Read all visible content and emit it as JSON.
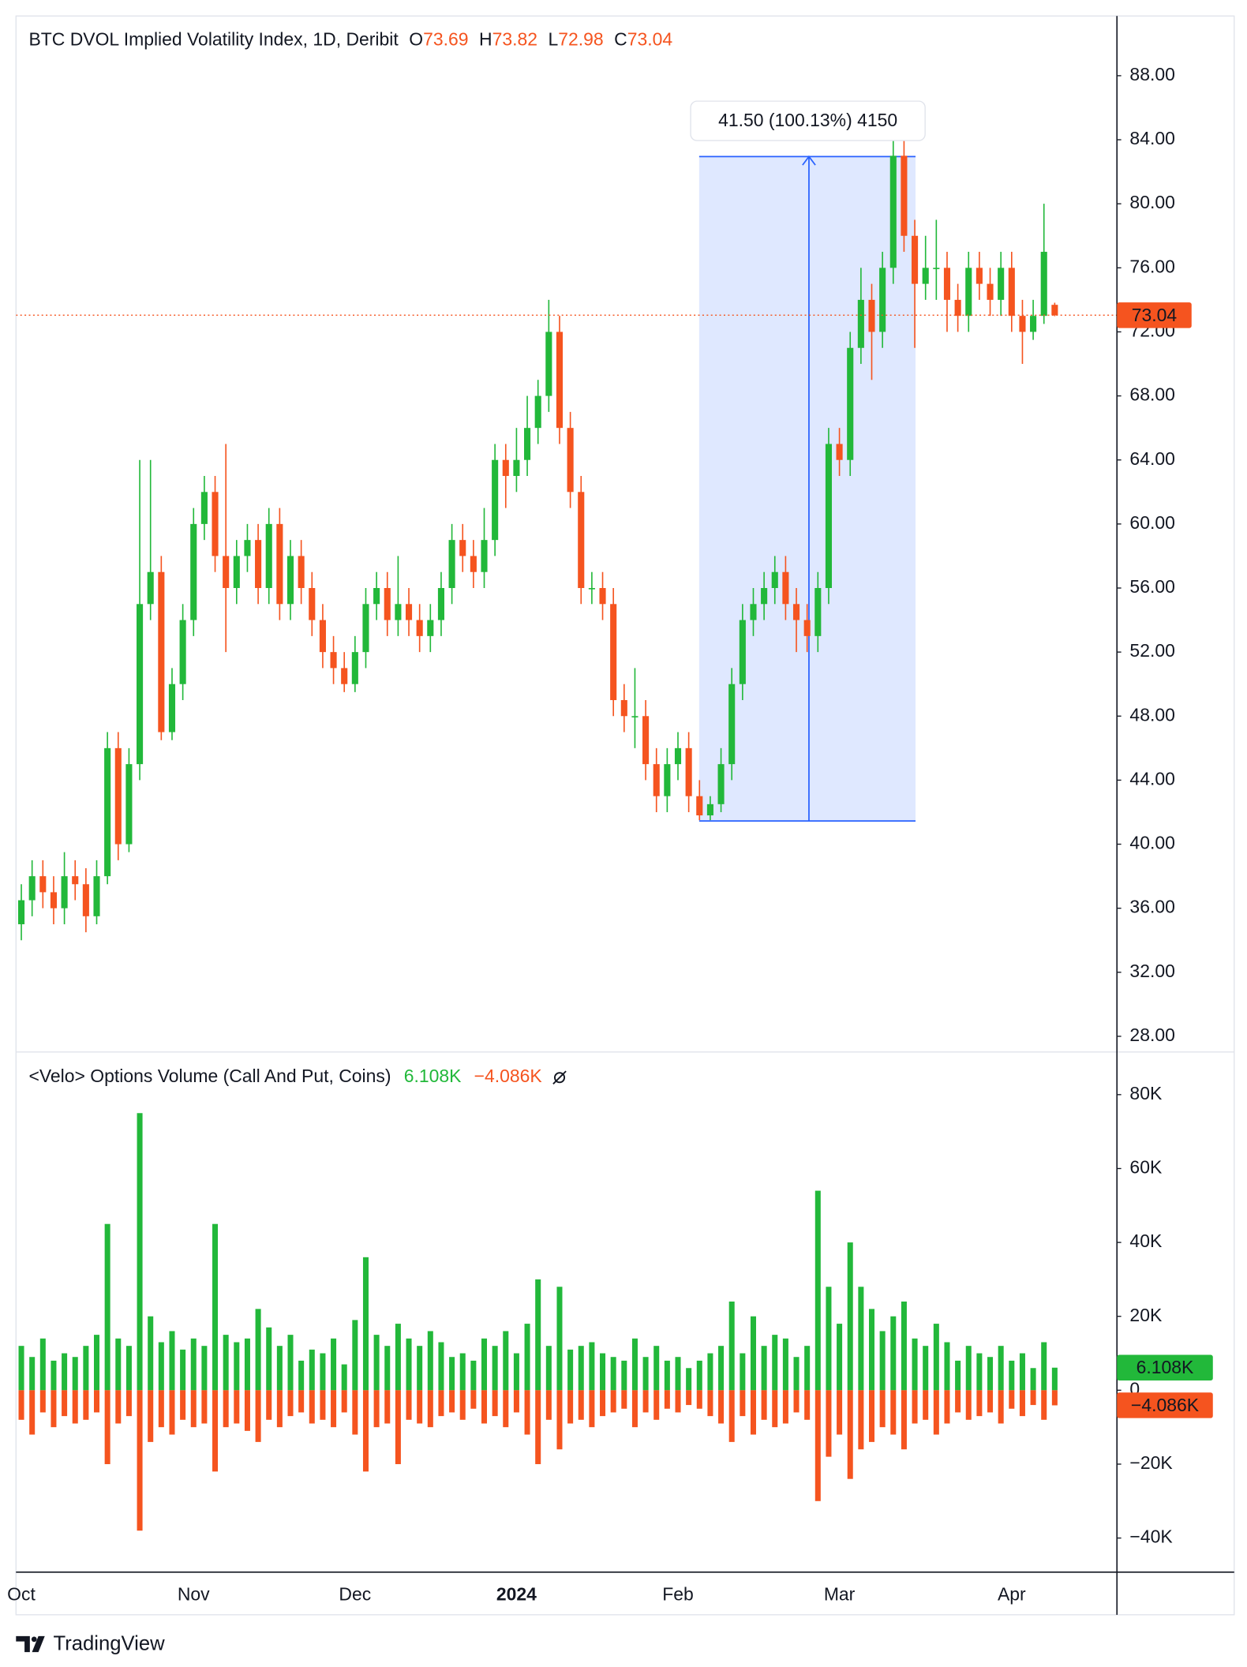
{
  "chart_data": [
    {
      "type": "candlestick",
      "title": "BTC DVOL Implied Volatility Index, 1D, Deribit",
      "ohlc_letters": [
        "O",
        "H",
        "L",
        "C"
      ],
      "categories": [
        "Oct",
        null,
        null,
        null,
        null,
        null,
        null,
        null,
        null,
        null,
        null,
        null,
        null,
        null,
        null,
        null,
        "Nov",
        null,
        null,
        null,
        null,
        null,
        null,
        null,
        null,
        null,
        null,
        null,
        null,
        null,
        null,
        "Dec",
        null,
        null,
        null,
        null,
        null,
        null,
        null,
        null,
        null,
        null,
        null,
        null,
        null,
        null,
        "2024",
        null,
        null,
        null,
        null,
        null,
        null,
        null,
        null,
        null,
        null,
        null,
        null,
        null,
        null,
        "Feb",
        null,
        null,
        null,
        null,
        null,
        null,
        null,
        null,
        null,
        null,
        null,
        null,
        null,
        null,
        "Mar",
        null,
        null,
        null,
        null,
        null,
        null,
        null,
        null,
        null,
        null,
        null,
        null,
        null,
        null,
        null,
        "Apr",
        null,
        null,
        null,
        null
      ],
      "open": [
        35,
        36.5,
        38,
        37,
        36,
        38,
        37.5,
        35.5,
        38,
        46,
        40,
        45,
        55,
        57,
        47,
        50,
        54,
        60,
        62,
        58,
        56,
        58,
        59,
        56,
        60,
        55,
        58,
        56,
        54,
        52,
        51,
        50,
        52,
        55,
        56,
        54,
        55,
        54,
        53,
        54,
        56,
        59,
        58,
        57,
        59,
        64,
        63,
        64,
        66,
        68,
        72,
        66,
        62,
        56,
        56,
        55,
        49,
        48,
        48,
        45,
        43,
        45,
        46,
        43,
        41.8,
        42.5,
        45,
        50,
        54,
        55,
        56,
        57,
        55,
        54,
        53,
        56,
        65,
        64,
        71,
        74,
        72,
        76,
        83,
        78,
        75,
        76,
        76,
        74,
        73,
        76,
        75,
        74,
        76,
        73,
        72,
        73,
        73.69
      ],
      "high": [
        37.5,
        39,
        39,
        38,
        39.5,
        39,
        38.5,
        39,
        47,
        47,
        46,
        64,
        64,
        58,
        51,
        55,
        61,
        63,
        63,
        65,
        59,
        60,
        60,
        61,
        61,
        59,
        59,
        57,
        55,
        53,
        52,
        53,
        56,
        57,
        57,
        58,
        56,
        55,
        55,
        57,
        60,
        60,
        59,
        61,
        65,
        65,
        66,
        68,
        69,
        74,
        73,
        67,
        63,
        57,
        57,
        56,
        50,
        51,
        49,
        46,
        46,
        47,
        47,
        44,
        43,
        46,
        51,
        55,
        56,
        57,
        58,
        58,
        56,
        55,
        57,
        66,
        66,
        72,
        76,
        75,
        77,
        85,
        84,
        79,
        78,
        79,
        77,
        75,
        77,
        77,
        76,
        77,
        77,
        74,
        74,
        80,
        73.82
      ],
      "low": [
        34,
        35.5,
        36,
        35,
        35,
        36.5,
        34.5,
        35,
        37.5,
        39,
        39.5,
        44,
        54,
        46.5,
        46.5,
        49,
        53,
        59,
        57,
        52,
        55,
        57,
        55,
        55,
        54,
        54,
        55,
        53,
        51,
        50,
        49.5,
        49.5,
        51,
        54,
        53,
        53,
        53,
        52,
        52,
        53,
        55,
        57,
        56,
        56,
        58,
        61,
        62,
        63,
        65,
        67,
        65,
        61,
        55,
        55,
        54,
        48,
        47,
        46,
        44,
        42,
        42,
        44,
        42,
        41.5,
        41.5,
        42,
        44,
        49,
        53,
        54,
        55,
        54,
        52,
        52,
        52,
        55,
        63,
        63,
        70,
        69,
        71,
        75,
        77,
        71,
        74,
        74,
        72,
        72,
        72,
        74,
        73,
        73,
        72,
        70,
        71.5,
        72.5,
        72.98
      ],
      "close": [
        36.5,
        38,
        37,
        36,
        38,
        37.5,
        35.5,
        38,
        46,
        40,
        45,
        55,
        57,
        47,
        50,
        54,
        60,
        62,
        58,
        56,
        58,
        59,
        56,
        60,
        55,
        58,
        56,
        54,
        52,
        51,
        50,
        52,
        55,
        56,
        54,
        55,
        54,
        53,
        54,
        56,
        59,
        58,
        57,
        59,
        64,
        63,
        64,
        66,
        68,
        72,
        66,
        62,
        56,
        56,
        55,
        49,
        48,
        48,
        45,
        43,
        45,
        46,
        43,
        41.8,
        42.5,
        45,
        50,
        54,
        55,
        56,
        57,
        55,
        54,
        53,
        56,
        65,
        64,
        71,
        74,
        72,
        76,
        83,
        78,
        75,
        76,
        76,
        74,
        73,
        76,
        75,
        74,
        76,
        73,
        72,
        73,
        77,
        73.04
      ],
      "up_color": "#22b83a",
      "down_color": "#f5541f",
      "ylim": [
        27.02,
        91.73
      ],
      "yticks": [
        {
          "value": 28,
          "label": "28.00"
        },
        {
          "value": 32,
          "label": "32.00"
        },
        {
          "value": 36,
          "label": "36.00"
        },
        {
          "value": 40,
          "label": "40.00"
        },
        {
          "value": 44,
          "label": "44.00"
        },
        {
          "value": 48,
          "label": "48.00"
        },
        {
          "value": 52,
          "label": "52.00"
        },
        {
          "value": 56,
          "label": "56.00"
        },
        {
          "value": 60,
          "label": "60.00"
        },
        {
          "value": 64,
          "label": "64.00"
        },
        {
          "value": 68,
          "label": "68.00"
        },
        {
          "value": 72,
          "label": "72.00"
        },
        {
          "value": 76,
          "label": "76.00"
        },
        {
          "value": 80,
          "label": "80.00"
        },
        {
          "value": 84,
          "label": "84.00"
        },
        {
          "value": 88,
          "label": "88.00"
        }
      ],
      "last_price_line": true,
      "measure": {
        "label": "41.50 (100.13%) 4150",
        "from": 41.45,
        "to": 82.95,
        "color": "#2962ff"
      }
    },
    {
      "type": "bar",
      "title": "<Velo> Options Volume (Call And Put, Coins)",
      "series": [
        {
          "color": "#22b83a",
          "values": [
            12000,
            9000,
            14000,
            8000,
            10000,
            9000,
            12000,
            15000,
            45000,
            14000,
            12000,
            75000,
            20000,
            13000,
            16000,
            11000,
            14000,
            12000,
            45000,
            15000,
            13000,
            14000,
            22000,
            17000,
            12000,
            15000,
            8000,
            11000,
            10000,
            14000,
            7000,
            19000,
            36000,
            15000,
            12000,
            18000,
            14000,
            12000,
            16000,
            13000,
            9000,
            10000,
            8000,
            14000,
            12000,
            16000,
            10000,
            18000,
            30000,
            12000,
            28000,
            11000,
            12000,
            13000,
            10000,
            9000,
            8000,
            14000,
            9000,
            12000,
            8000,
            9000,
            6000,
            8000,
            10000,
            12000,
            24000,
            10000,
            20000,
            12000,
            15000,
            14000,
            9000,
            12000,
            54000,
            28000,
            18000,
            40000,
            28000,
            22000,
            16000,
            20000,
            24000,
            14000,
            12000,
            18000,
            13000,
            8000,
            12000,
            10000,
            9000,
            12000,
            8000,
            10000,
            6000,
            13000,
            6108
          ],
          "value_labels": [
            null,
            null,
            null,
            null,
            null,
            null,
            null,
            null,
            null,
            null,
            null,
            null,
            null,
            null,
            null,
            null,
            null,
            null,
            null,
            null,
            null,
            null,
            null,
            null,
            null,
            null,
            null,
            null,
            null,
            null,
            null,
            null,
            null,
            null,
            null,
            null,
            null,
            null,
            null,
            null,
            null,
            null,
            null,
            null,
            null,
            null,
            null,
            null,
            null,
            null,
            null,
            null,
            null,
            null,
            null,
            null,
            null,
            null,
            null,
            null,
            null,
            null,
            null,
            null,
            null,
            null,
            null,
            null,
            null,
            null,
            null,
            null,
            null,
            null,
            null,
            null,
            null,
            null,
            null,
            null,
            null,
            null,
            null,
            null,
            null,
            null,
            null,
            null,
            null,
            null,
            null,
            null,
            null,
            null,
            null,
            null,
            "6.108K"
          ]
        },
        {
          "color": "#f5541f",
          "values": [
            -8000,
            -12000,
            -6000,
            -10000,
            -7000,
            -9000,
            -8000,
            -6000,
            -20000,
            -9000,
            -7000,
            -38000,
            -14000,
            -10000,
            -12000,
            -8000,
            -10000,
            -9000,
            -22000,
            -10000,
            -9000,
            -11000,
            -14000,
            -8000,
            -10000,
            -7000,
            -6000,
            -9000,
            -8000,
            -10000,
            -6000,
            -12000,
            -22000,
            -10000,
            -9000,
            -20000,
            -8000,
            -9000,
            -10000,
            -7000,
            -6000,
            -8000,
            -5000,
            -9000,
            -7000,
            -10000,
            -6000,
            -12000,
            -20000,
            -8000,
            -16000,
            -9000,
            -8000,
            -10000,
            -7000,
            -6000,
            -5000,
            -10000,
            -6000,
            -8000,
            -5000,
            -6000,
            -4000,
            -5000,
            -7000,
            -9000,
            -14000,
            -7000,
            -12000,
            -8000,
            -10000,
            -9000,
            -6000,
            -8000,
            -30000,
            -18000,
            -12000,
            -24000,
            -16000,
            -14000,
            -10000,
            -12000,
            -16000,
            -9000,
            -8000,
            -12000,
            -9000,
            -6000,
            -8000,
            -7000,
            -6000,
            -9000,
            -5000,
            -7000,
            -4000,
            -8000,
            -4086
          ],
          "value_labels": [
            null,
            null,
            null,
            null,
            null,
            null,
            null,
            null,
            null,
            null,
            null,
            null,
            null,
            null,
            null,
            null,
            null,
            null,
            null,
            null,
            null,
            null,
            null,
            null,
            null,
            null,
            null,
            null,
            null,
            null,
            null,
            null,
            null,
            null,
            null,
            null,
            null,
            null,
            null,
            null,
            null,
            null,
            null,
            null,
            null,
            null,
            null,
            null,
            null,
            null,
            null,
            null,
            null,
            null,
            null,
            null,
            null,
            null,
            null,
            null,
            null,
            null,
            null,
            null,
            null,
            null,
            null,
            null,
            null,
            null,
            null,
            null,
            null,
            null,
            null,
            null,
            null,
            null,
            null,
            null,
            null,
            null,
            null,
            null,
            null,
            null,
            null,
            null,
            null,
            null,
            null,
            null,
            null,
            null,
            null,
            null,
            "−4.086K"
          ]
        }
      ],
      "ylim": [
        -49230,
        91250
      ],
      "yticks": [
        {
          "value": -40000,
          "label": "−40K"
        },
        {
          "value": -20000,
          "label": "−20K"
        },
        0,
        {
          "value": 20000,
          "label": "20K"
        },
        {
          "value": 40000,
          "label": "40K"
        },
        {
          "value": 60000,
          "label": "60K"
        },
        {
          "value": 80000,
          "label": "80K"
        }
      ]
    }
  ],
  "brand": "TradingView"
}
